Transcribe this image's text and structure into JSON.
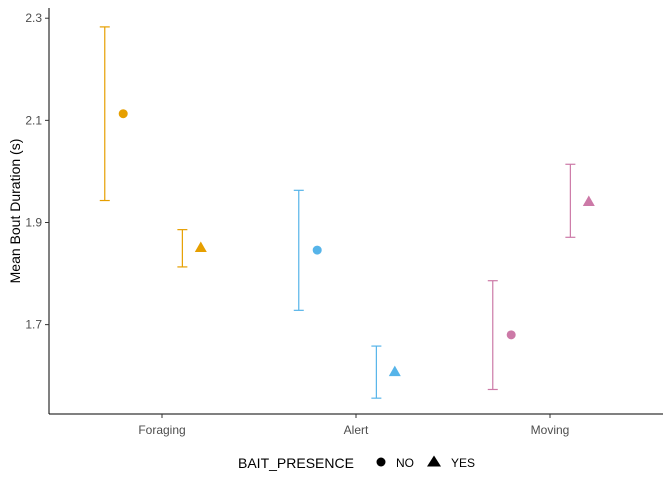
{
  "chart_data": {
    "type": "scatter",
    "title": "",
    "xlabel": "",
    "ylabel": "Mean Bout Duration (s)",
    "categories": [
      "Foraging",
      "Alert",
      "Moving"
    ],
    "ylim": [
      1.525,
      2.32
    ],
    "yticks": [
      1.7,
      1.9,
      2.1,
      2.3
    ],
    "ytick_labels": [
      "1.7",
      "1.9",
      "2.1",
      "2.3"
    ],
    "grid": false,
    "category_colors": {
      "Foraging": "#E69F00",
      "Alert": "#56B4E9",
      "Moving": "#CC79A7"
    },
    "legend": {
      "title": "BAIT_PRESENCE",
      "position": "bottom",
      "entries": [
        {
          "label": "NO",
          "shape": "circle"
        },
        {
          "label": "YES",
          "shape": "triangle"
        }
      ]
    },
    "series": [
      {
        "shape": "circle",
        "dodge": -0.2,
        "points": [
          {
            "category": "Foraging",
            "mean": 2.113,
            "ymin": 1.943,
            "ymax": 2.283
          },
          {
            "category": "Alert",
            "mean": 1.846,
            "ymin": 1.728,
            "ymax": 1.963
          },
          {
            "category": "Moving",
            "mean": 1.68,
            "ymin": 1.573,
            "ymax": 1.786
          }
        ]
      },
      {
        "shape": "triangle",
        "dodge": 0.2,
        "points": [
          {
            "category": "Foraging",
            "mean": 1.851,
            "ymin": 1.813,
            "ymax": 1.886
          },
          {
            "category": "Alert",
            "mean": 1.608,
            "ymin": 1.556,
            "ymax": 1.658
          },
          {
            "category": "Moving",
            "mean": 1.941,
            "ymin": 1.871,
            "ymax": 2.014
          }
        ]
      }
    ]
  }
}
